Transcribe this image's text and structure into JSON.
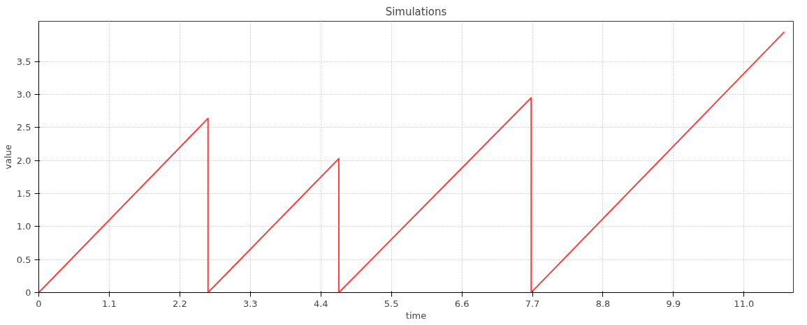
{
  "chart_data": {
    "type": "line",
    "title": "Simulations",
    "xlabel": "time",
    "ylabel": "value",
    "x": [
      0,
      2.64,
      2.64,
      4.68,
      4.68,
      7.68,
      7.68,
      11.63
    ],
    "series": [
      {
        "color": "#ff3b3b",
        "values": [
          0,
          2.64,
          0,
          2.03,
          0,
          2.95,
          0,
          3.95
        ]
      }
    ],
    "xlim": [
      0,
      11.77
    ],
    "ylim": [
      0,
      4.11
    ],
    "xticks": [
      0,
      1.1,
      2.2,
      3.3,
      4.4,
      5.5,
      6.6,
      7.7,
      8.8,
      9.9,
      {
        "value": 11.0,
        "label": "11.0"
      }
    ],
    "yticks": [
      0,
      0.5,
      {
        "value": 1.0,
        "label": "1.0"
      },
      1.5,
      {
        "value": 2.0,
        "label": "2.0"
      },
      2.5,
      {
        "value": 3.0,
        "label": "3.0"
      },
      3.5
    ],
    "grid": true,
    "line_style": "solid",
    "marker": "none"
  }
}
